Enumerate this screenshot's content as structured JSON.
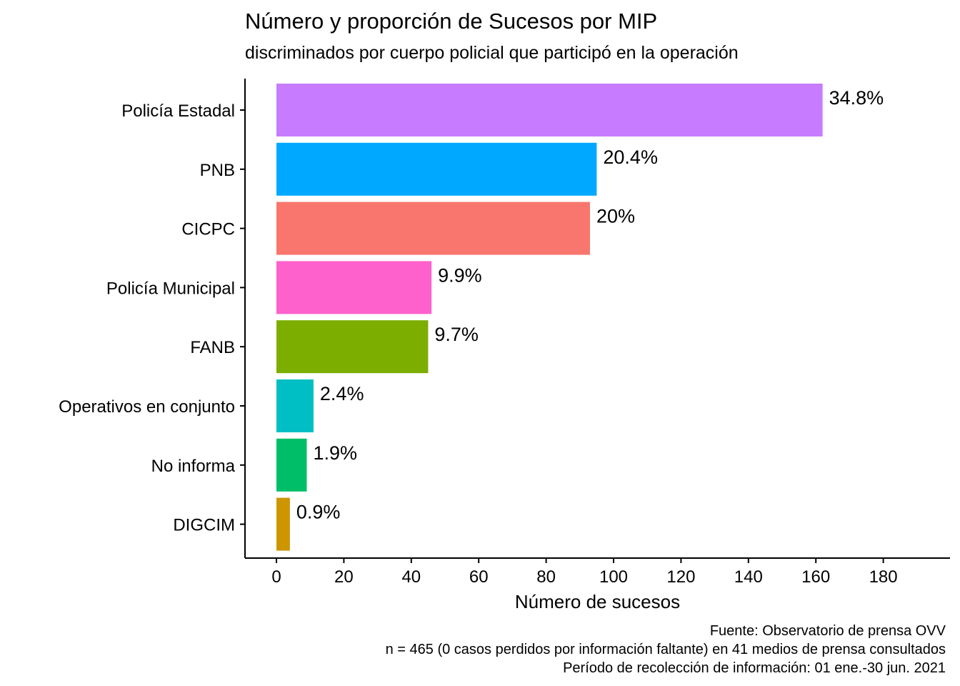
{
  "chart_data": {
    "type": "bar",
    "orientation": "horizontal",
    "title": "Número y proporción de Sucesos por MIP",
    "subtitle": "discriminados por cuerpo policial que participó en la operación",
    "xlabel": "Número de sucesos",
    "ylabel": "",
    "xlim": [
      0,
      200
    ],
    "xticks": [
      0,
      20,
      40,
      60,
      80,
      100,
      120,
      140,
      160,
      180
    ],
    "grid": false,
    "legend": "none",
    "categories": [
      "Policía Estadal",
      "PNB",
      "CICPC",
      "Policía Municipal",
      "FANB",
      "Operativos en conjunto",
      "No informa",
      "DIGCIM"
    ],
    "values": [
      162,
      95,
      93,
      46,
      45,
      11,
      9,
      4
    ],
    "labels": [
      "34.8%",
      "20.4%",
      "20%",
      "9.9%",
      "9.7%",
      "2.4%",
      "1.9%",
      "0.9%"
    ],
    "colors": [
      "#C77CFF",
      "#00A9FF",
      "#F8766D",
      "#FF61CC",
      "#7CAE00",
      "#00BFC4",
      "#00BE67",
      "#CD9600"
    ]
  },
  "caption": {
    "source": "Fuente: Observatorio de prensa OVV",
    "sample": "n = 465 (0 casos perdidos por información faltante) en 41 medios de prensa consultados",
    "period": "Período de recolección de información: 01 ene.-30 jun. 2021"
  }
}
